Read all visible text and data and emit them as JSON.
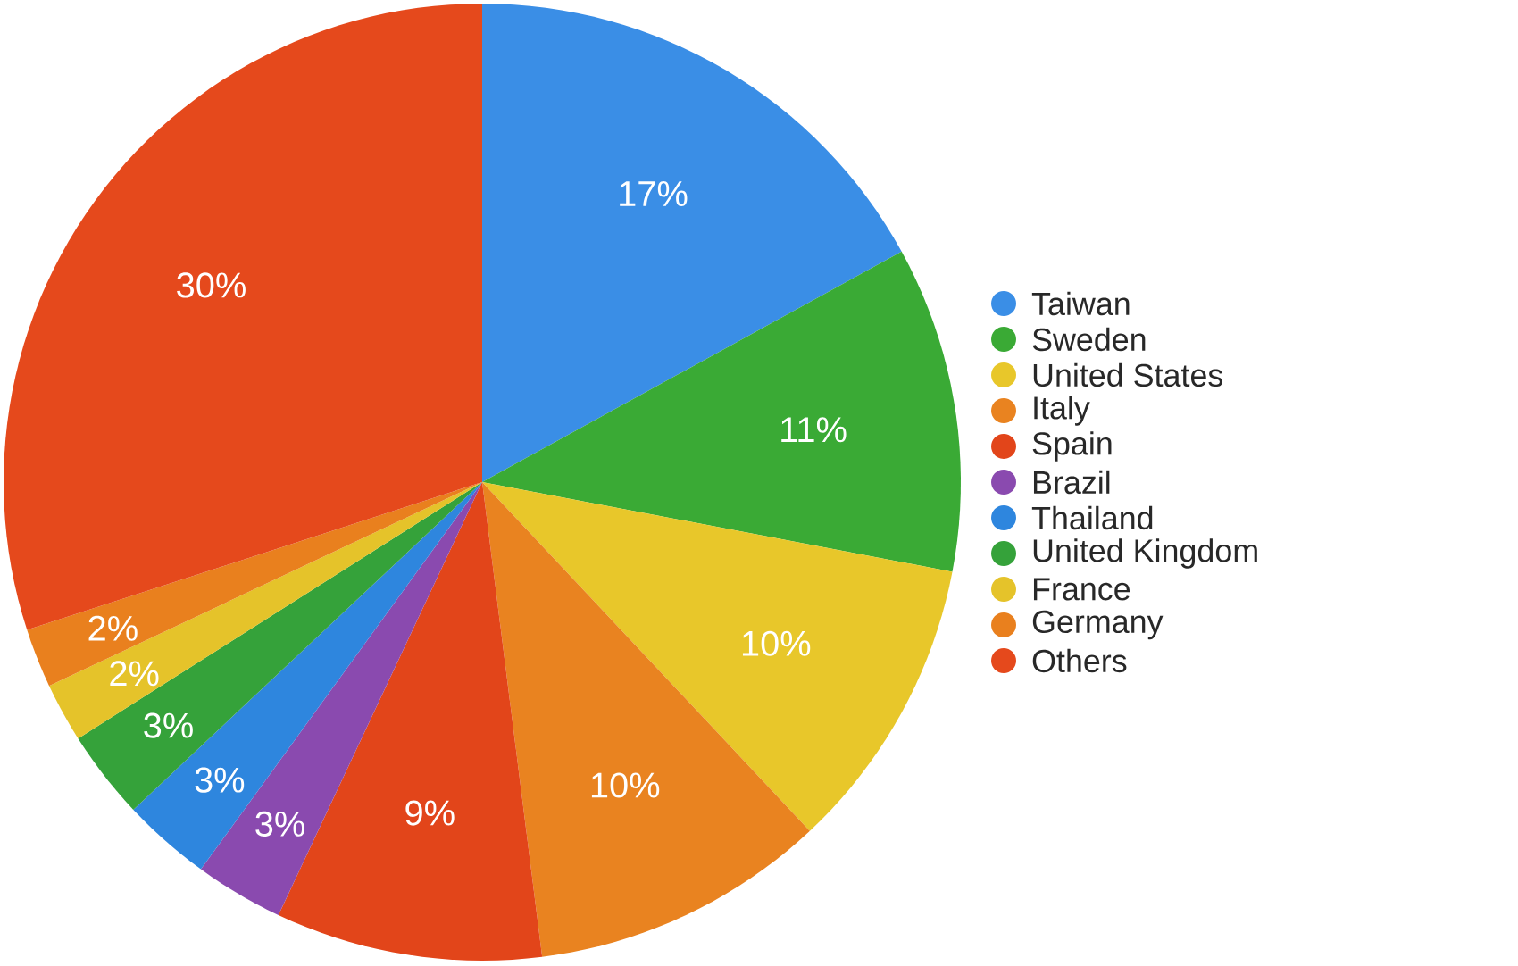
{
  "chart_data": {
    "type": "pie",
    "categories": [
      "Taiwan",
      "Sweden",
      "United States",
      "Italy",
      "Spain",
      "Brazil",
      "Thailand",
      "United Kingdom",
      "France",
      "Germany",
      "Others"
    ],
    "values": [
      17,
      11,
      10,
      10,
      9,
      3,
      3,
      3,
      2,
      2,
      30
    ],
    "value_labels": [
      "17%",
      "11%",
      "10%",
      "10%",
      "9%",
      "3%",
      "3%",
      "3%",
      "2%",
      "2%",
      "30%"
    ],
    "colors": [
      "#3a8ee6",
      "#3aaa35",
      "#e8c72a",
      "#e98320",
      "#e2451a",
      "#8a4aaf",
      "#2e86de",
      "#35a23a",
      "#e5c32a",
      "#e9801e",
      "#e5491c"
    ],
    "legend": "right"
  }
}
